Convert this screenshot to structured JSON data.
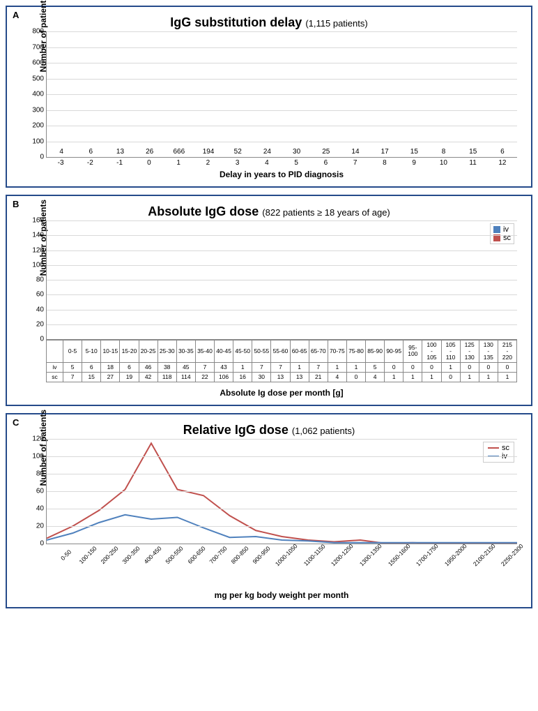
{
  "chartA": {
    "panel_letter": "A",
    "title_main": "IgG substitution delay",
    "title_sub": "(1,115 patients)",
    "ylabel": "Number of patients",
    "xlabel": "Delay in years to PID diagnosis",
    "ymax": 800,
    "ytick_step": 100,
    "bar_color": "#4f81bd",
    "grid_color": "#d9d9d9",
    "categories": [
      "-3",
      "-2",
      "-1",
      "0",
      "1",
      "2",
      "3",
      "4",
      "5",
      "6",
      "7",
      "8",
      "9",
      "10",
      "11",
      "12"
    ],
    "values": [
      4,
      6,
      13,
      26,
      666,
      194,
      52,
      24,
      30,
      25,
      14,
      17,
      15,
      8,
      15,
      6
    ]
  },
  "chartB": {
    "panel_letter": "B",
    "title_main": "Absolute IgG dose",
    "title_sub": "(822 patients ≥ 18 years of age)",
    "ylabel": "Number of patients",
    "xlabel": "Absolute Ig dose per month [g]",
    "ymax": 160,
    "ytick_step": 20,
    "iv_color": "#4f81bd",
    "sc_color": "#c0504d",
    "grid_color": "#d9d9d9",
    "legend_iv": "iv",
    "legend_sc": "sc",
    "row_iv": "iv",
    "row_sc": "sc",
    "categories": [
      "0-5",
      "5-10",
      "10-15",
      "15-20",
      "20-25",
      "25-30",
      "30-35",
      "35-40",
      "40-45",
      "45-50",
      "50-55",
      "55-60",
      "60-65",
      "65-70",
      "70-75",
      "75-80",
      "85-90",
      "90-95",
      "95-100",
      "100-105",
      "105-110",
      "125-130",
      "130-135",
      "215-220"
    ],
    "iv": [
      5,
      6,
      18,
      6,
      46,
      38,
      45,
      7,
      43,
      1,
      7,
      7,
      1,
      7,
      1,
      1,
      5,
      0,
      0,
      0,
      1,
      0,
      0,
      0
    ],
    "sc": [
      7,
      15,
      27,
      19,
      42,
      118,
      114,
      22,
      106,
      16,
      30,
      13,
      13,
      21,
      4,
      0,
      4,
      1,
      1,
      1,
      0,
      1,
      1,
      1
    ]
  },
  "chartC": {
    "panel_letter": "C",
    "title_main": "Relative IgG dose",
    "title_sub": "(1,062 patients)",
    "ylabel": "Number of patients",
    "xlabel": "mg per kg body weight per month",
    "ymax": 120,
    "ytick_step": 20,
    "sc_color": "#c0504d",
    "iv_color": "#4f81bd",
    "grid_color": "#d9d9d9",
    "legend_sc": "sc",
    "legend_iv": "iv",
    "categories": [
      "0-50",
      "100-150",
      "200-250",
      "300-350",
      "400-450",
      "500-550",
      "600-650",
      "700-750",
      "800-850",
      "900-950",
      "1000-1050",
      "1100-1150",
      "1200-1250",
      "1300-1350",
      "1550-1600",
      "1700-1750",
      "1950-2000",
      "2100-2150",
      "2250-2300"
    ],
    "sc": [
      6,
      20,
      38,
      62,
      115,
      62,
      55,
      32,
      15,
      8,
      4,
      2,
      4,
      0,
      1,
      0,
      0,
      0,
      0
    ],
    "iv": [
      4,
      12,
      24,
      33,
      28,
      30,
      18,
      7,
      8,
      4,
      3,
      1,
      1,
      1,
      1,
      1,
      1,
      1,
      1
    ]
  }
}
